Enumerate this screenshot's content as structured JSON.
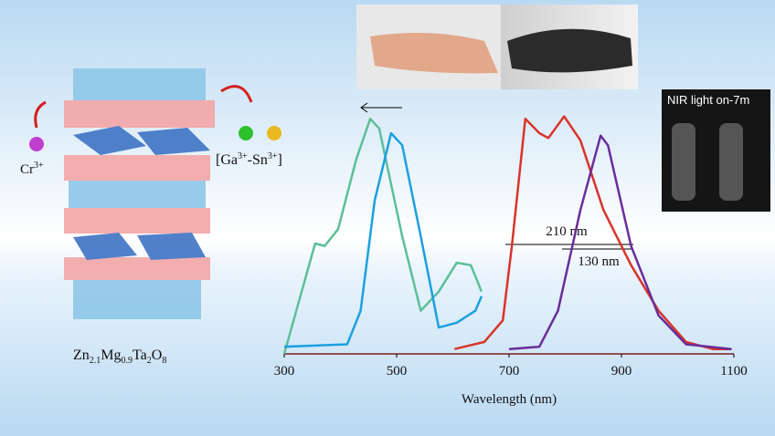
{
  "chart_data": {
    "type": "line",
    "xlabel": "Wavelength (nm)",
    "xlim": [
      300,
      1100
    ],
    "xticks": [
      300,
      500,
      700,
      900,
      1100
    ],
    "ylim": [
      0,
      1
    ],
    "series": [
      {
        "color": "#5cbf98",
        "x": [
          300,
          331,
          355,
          372,
          396,
          428,
          453,
          469,
          510,
          543,
          575,
          607,
          632,
          651
        ],
        "values": [
          0,
          0.26,
          0.46,
          0.45,
          0.52,
          0.81,
          0.98,
          0.94,
          0.49,
          0.18,
          0.26,
          0.38,
          0.37,
          0.26
        ]
      },
      {
        "color": "#1ba0e0",
        "x": [
          300,
          412,
          436,
          461,
          490,
          510,
          543,
          575,
          607,
          640,
          651
        ],
        "values": [
          0.03,
          0.04,
          0.18,
          0.64,
          0.92,
          0.87,
          0.49,
          0.11,
          0.13,
          0.18,
          0.24
        ]
      },
      {
        "color": "#d9342b",
        "x": [
          603,
          656,
          689,
          705,
          729,
          754,
          770,
          798,
          827,
          868,
          917,
          966,
          1015,
          1063,
          1096
        ],
        "values": [
          0.02,
          0.05,
          0.14,
          0.45,
          0.98,
          0.92,
          0.9,
          0.99,
          0.89,
          0.6,
          0.37,
          0.18,
          0.05,
          0.02,
          0.02
        ]
      },
      {
        "color": "#6a2d9a",
        "x": [
          700,
          754,
          787,
          827,
          863,
          876,
          917,
          966,
          1015,
          1096
        ],
        "values": [
          0.02,
          0.03,
          0.18,
          0.6,
          0.91,
          0.87,
          0.45,
          0.16,
          0.04,
          0.02
        ]
      }
    ],
    "annotations": {
      "fwhm_red": "210 nm",
      "fwhm_purple": "130 nm",
      "photo_label": "NIR light on-7m",
      "dopant": [
        "Cr",
        "3+"
      ],
      "codopant": [
        "[Ga",
        "3+",
        "-Sn",
        "3+",
        "]"
      ],
      "formula": [
        "Zn",
        "2.1",
        "Mg",
        "0.9",
        "Ta",
        "2",
        "O",
        "8"
      ]
    }
  }
}
